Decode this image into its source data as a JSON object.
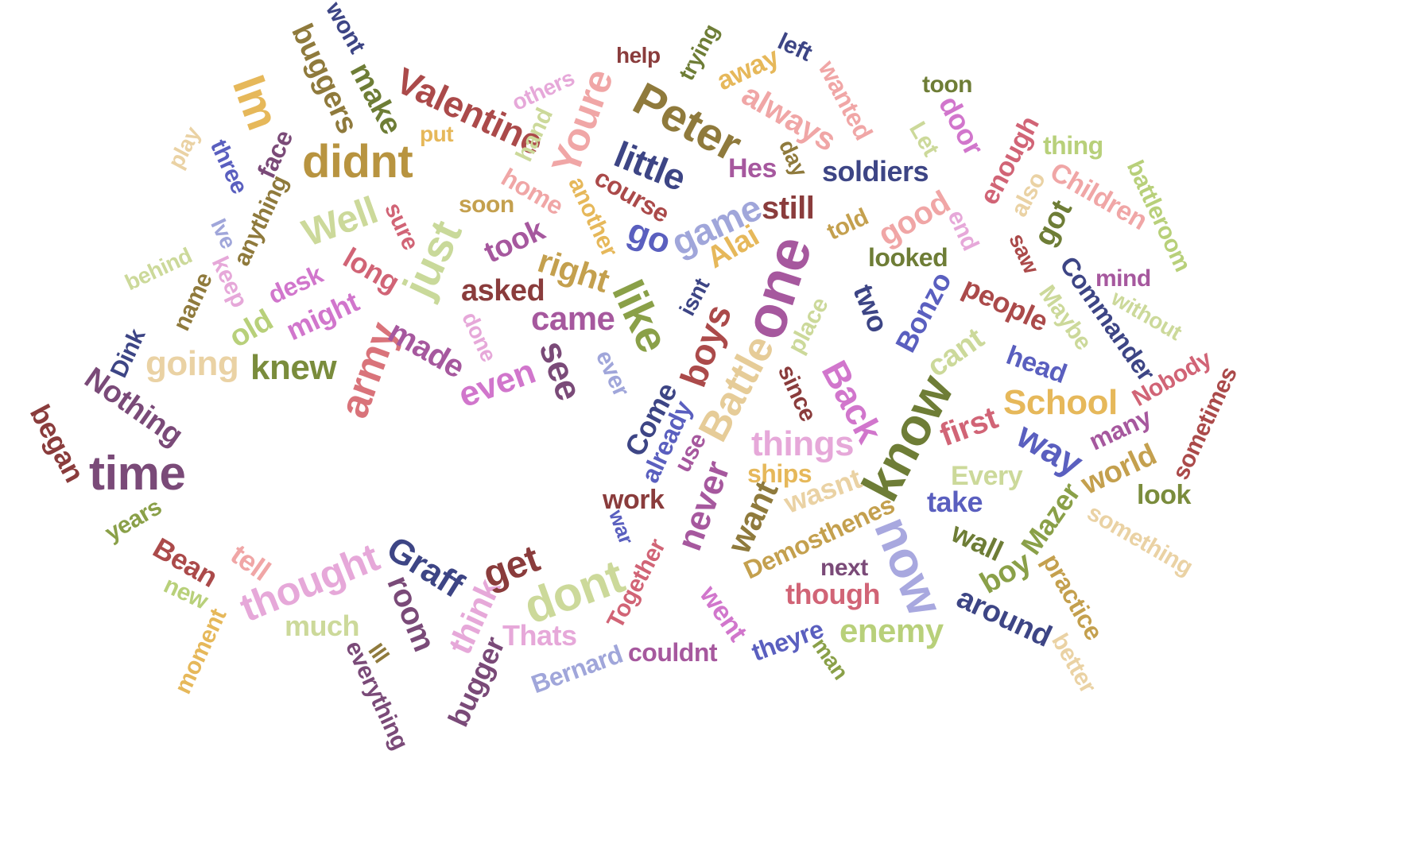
{
  "words": [
    {
      "text": "time",
      "color": "#7a4a78"
    },
    {
      "text": "didnt",
      "color": "#b89440"
    },
    {
      "text": "Peter",
      "color": "#8f7a3c"
    },
    {
      "text": "one",
      "color": "#a6589e"
    },
    {
      "text": "know",
      "color": "#6e7d36"
    },
    {
      "text": "dont",
      "color": "#ccd99a"
    },
    {
      "text": "now",
      "color": "#a8a8df"
    },
    {
      "text": "like",
      "color": "#8aa048"
    },
    {
      "text": "just",
      "color": "#c9d99a"
    },
    {
      "text": "Battle",
      "color": "#e6cc98"
    },
    {
      "text": "thought",
      "color": "#e6a8d9"
    },
    {
      "text": "army",
      "color": "#d9737a"
    },
    {
      "text": "Im",
      "color": "#e6b85a"
    },
    {
      "text": "Youre",
      "color": "#f0a6a6"
    },
    {
      "text": "Valentine",
      "color": "#ab4a4a"
    },
    {
      "text": "little",
      "color": "#3d4585"
    },
    {
      "text": "game",
      "color": "#a0a6da"
    },
    {
      "text": "Well",
      "color": "#ccd99a"
    },
    {
      "text": "knew",
      "color": "#7a8c3c"
    },
    {
      "text": "going",
      "color": "#ead2a4"
    },
    {
      "text": "Nothing",
      "color": "#7a4a78"
    },
    {
      "text": "began",
      "color": "#8a3c3c"
    },
    {
      "text": "even",
      "color": "#d176cc"
    },
    {
      "text": "see",
      "color": "#7a4a78"
    },
    {
      "text": "came",
      "color": "#a6589e"
    },
    {
      "text": "made",
      "color": "#a6589e"
    },
    {
      "text": "right",
      "color": "#c4a04e"
    },
    {
      "text": "asked",
      "color": "#8a3c3c"
    },
    {
      "text": "boys",
      "color": "#ab4a4a"
    },
    {
      "text": "Back",
      "color": "#d176cc"
    },
    {
      "text": "things",
      "color": "#e6a8d9"
    },
    {
      "text": "School",
      "color": "#e6b85a"
    },
    {
      "text": "way",
      "color": "#5a5fbf"
    },
    {
      "text": "first",
      "color": "#d16476"
    },
    {
      "text": "Bonzo",
      "color": "#5a5fbf"
    },
    {
      "text": "two",
      "color": "#3d4585"
    },
    {
      "text": "people",
      "color": "#ab4a4a"
    },
    {
      "text": "Commander",
      "color": "#3d4585"
    },
    {
      "text": "Maybe",
      "color": "#ccd99a"
    },
    {
      "text": "mind",
      "color": "#a6589e"
    },
    {
      "text": "without",
      "color": "#ccd99a"
    },
    {
      "text": "head",
      "color": "#5a5fbf"
    },
    {
      "text": "Nobody",
      "color": "#d16476"
    },
    {
      "text": "sometimes",
      "color": "#ab4a4a"
    },
    {
      "text": "many",
      "color": "#a6589e"
    },
    {
      "text": "world",
      "color": "#c4a04e"
    },
    {
      "text": "look",
      "color": "#7a8c3c"
    },
    {
      "text": "something",
      "color": "#ead2a4"
    },
    {
      "text": "practice",
      "color": "#c4a04e"
    },
    {
      "text": "better",
      "color": "#ead2a4"
    },
    {
      "text": "around",
      "color": "#3d4585"
    },
    {
      "text": "boy",
      "color": "#8aa048"
    },
    {
      "text": "Mazer",
      "color": "#8aa048"
    },
    {
      "text": "wall",
      "color": "#6e7d36"
    },
    {
      "text": "take",
      "color": "#5a5fbf"
    },
    {
      "text": "Every",
      "color": "#ccd99a"
    },
    {
      "text": "cant",
      "color": "#ccd99a"
    },
    {
      "text": "enemy",
      "color": "#b8d07a"
    },
    {
      "text": "next",
      "color": "#7a4a78"
    },
    {
      "text": "though",
      "color": "#d16476"
    },
    {
      "text": "Demosthenes",
      "color": "#c4a04e"
    },
    {
      "text": "wasnt",
      "color": "#ead2a4"
    },
    {
      "text": "ships",
      "color": "#e6b85a"
    },
    {
      "text": "want",
      "color": "#8f7a3c"
    },
    {
      "text": "never",
      "color": "#a6589e"
    },
    {
      "text": "work",
      "color": "#8a3c3c"
    },
    {
      "text": "war",
      "color": "#5a5fbf"
    },
    {
      "text": "Together",
      "color": "#d16476"
    },
    {
      "text": "went",
      "color": "#d176cc"
    },
    {
      "text": "theyre",
      "color": "#5a5fbf"
    },
    {
      "text": "man",
      "color": "#8aa048"
    },
    {
      "text": "couldnt",
      "color": "#a6589e"
    },
    {
      "text": "Bernard",
      "color": "#a0a6da"
    },
    {
      "text": "Thats",
      "color": "#e6a8d9"
    },
    {
      "text": "think",
      "color": "#e6a8d9"
    },
    {
      "text": "bugger",
      "color": "#7a4a78"
    },
    {
      "text": "get",
      "color": "#8a3c3c"
    },
    {
      "text": "room",
      "color": "#7a4a78"
    },
    {
      "text": "Graff",
      "color": "#3d4585"
    },
    {
      "text": "Ill",
      "color": "#8f7a3c"
    },
    {
      "text": "everything",
      "color": "#7a4a78"
    },
    {
      "text": "much",
      "color": "#ccd99a"
    },
    {
      "text": "tell",
      "color": "#f0a6a6"
    },
    {
      "text": "Bean",
      "color": "#ab4a4a"
    },
    {
      "text": "new",
      "color": "#b8d07a"
    },
    {
      "text": "moment",
      "color": "#e6b85a"
    },
    {
      "text": "years",
      "color": "#8aa048"
    },
    {
      "text": "Dink",
      "color": "#3d4585"
    },
    {
      "text": "old",
      "color": "#b8d07a"
    },
    {
      "text": "might",
      "color": "#d176cc"
    },
    {
      "text": "desk",
      "color": "#d176cc"
    },
    {
      "text": "keep",
      "color": "#e6a8d9"
    },
    {
      "text": "name",
      "color": "#8f7a3c"
    },
    {
      "text": "behind",
      "color": "#ccd99a"
    },
    {
      "text": "Ive",
      "color": "#a0a6da"
    },
    {
      "text": "anything",
      "color": "#8f7a3c"
    },
    {
      "text": "three",
      "color": "#5a5fbf"
    },
    {
      "text": "face",
      "color": "#7a4a78"
    },
    {
      "text": "play",
      "color": "#ead2a4"
    },
    {
      "text": "buggers",
      "color": "#8f7a3c"
    },
    {
      "text": "wont",
      "color": "#3d4585"
    },
    {
      "text": "make",
      "color": "#6e7d36"
    },
    {
      "text": "put",
      "color": "#e6b85a"
    },
    {
      "text": "others",
      "color": "#e6a8d9"
    },
    {
      "text": "hand",
      "color": "#ccd99a"
    },
    {
      "text": "home",
      "color": "#f0a6a6"
    },
    {
      "text": "sure",
      "color": "#d16476"
    },
    {
      "text": "soon",
      "color": "#c4a04e"
    },
    {
      "text": "took",
      "color": "#a6589e"
    },
    {
      "text": "long",
      "color": "#d16476"
    },
    {
      "text": "done",
      "color": "#e6a8d9"
    },
    {
      "text": "another",
      "color": "#e6b85a"
    },
    {
      "text": "course",
      "color": "#ab4a4a"
    },
    {
      "text": "go",
      "color": "#5a5fbf"
    },
    {
      "text": "ever",
      "color": "#a0a6da"
    },
    {
      "text": "isnt",
      "color": "#3d4585"
    },
    {
      "text": "Alai",
      "color": "#e6b85a"
    },
    {
      "text": "Come",
      "color": "#3d4585"
    },
    {
      "text": "already",
      "color": "#5a5fbf"
    },
    {
      "text": "use",
      "color": "#a6589e"
    },
    {
      "text": "since",
      "color": "#8a3c3c"
    },
    {
      "text": "place",
      "color": "#ccd99a"
    },
    {
      "text": "still",
      "color": "#8a3c3c"
    },
    {
      "text": "Hes",
      "color": "#a6589e"
    },
    {
      "text": "day",
      "color": "#8f7a3c"
    },
    {
      "text": "soldiers",
      "color": "#3d4585"
    },
    {
      "text": "told",
      "color": "#c4a04e"
    },
    {
      "text": "good",
      "color": "#f0a6a6"
    },
    {
      "text": "looked",
      "color": "#6e7d36"
    },
    {
      "text": "end",
      "color": "#e6a8d9"
    },
    {
      "text": "always",
      "color": "#f0a6a6"
    },
    {
      "text": "away",
      "color": "#e6b85a"
    },
    {
      "text": "trying",
      "color": "#6e7d36"
    },
    {
      "text": "help",
      "color": "#8a3c3c"
    },
    {
      "text": "left",
      "color": "#3d4585"
    },
    {
      "text": "wanted",
      "color": "#f0a6a6"
    },
    {
      "text": "toon",
      "color": "#6e7d36"
    },
    {
      "text": "door",
      "color": "#d176cc"
    },
    {
      "text": "Let",
      "color": "#ccd99a"
    },
    {
      "text": "enough",
      "color": "#d16476"
    },
    {
      "text": "thing",
      "color": "#b8d07a"
    },
    {
      "text": "also",
      "color": "#ead2a4"
    },
    {
      "text": "got",
      "color": "#6e7d36"
    },
    {
      "text": "saw",
      "color": "#ab4a4a"
    },
    {
      "text": "Children",
      "color": "#f0a6a6"
    },
    {
      "text": "battleroom",
      "color": "#b8d07a"
    }
  ]
}
